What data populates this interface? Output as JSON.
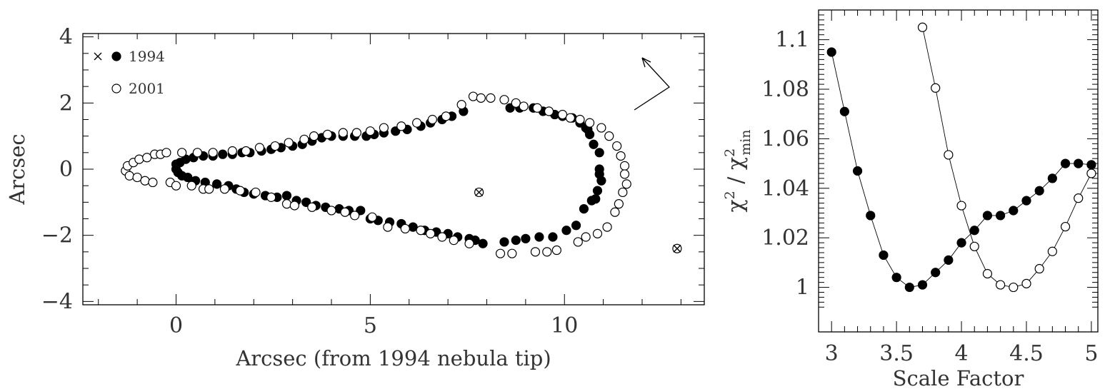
{
  "chart_data": [
    {
      "type": "scatter",
      "xlabel": "Arcsec (from 1994 nebula tip)",
      "ylabel": "Arcsec",
      "xlim": [
        -2.4,
        13.6
      ],
      "ylim": [
        -4.1,
        4.1
      ],
      "xticks": [
        0,
        5,
        10
      ],
      "yticks": [
        -4,
        -2,
        0,
        2,
        4
      ],
      "xtick_labels": [
        "0",
        "5",
        "10"
      ],
      "ytick_labels": [
        "−4",
        "−2",
        "0",
        "2",
        "4"
      ],
      "legend": {
        "position": "top-left",
        "entries": [
          {
            "symbol": "cross-and-filled",
            "label": "1994"
          },
          {
            "symbol": "open",
            "label": "2001"
          }
        ]
      },
      "markers": [
        {
          "type": "cross-circle",
          "x": 7.8,
          "y": -0.7
        },
        {
          "type": "cross-circle",
          "x": 12.9,
          "y": -2.4
        }
      ],
      "series": [
        {
          "marker": "filled",
          "points": [
            [
              0.0,
              0.0
            ],
            [
              0.0,
              0.15
            ],
            [
              0.05,
              -0.1
            ],
            [
              0.1,
              0.2
            ],
            [
              0.15,
              -0.2
            ],
            [
              0.25,
              0.3
            ],
            [
              0.3,
              -0.25
            ],
            [
              0.45,
              0.35
            ],
            [
              0.5,
              -0.35
            ],
            [
              0.7,
              0.4
            ],
            [
              0.75,
              -0.4
            ],
            [
              0.95,
              0.4
            ],
            [
              1.05,
              -0.45
            ],
            [
              1.2,
              0.45
            ],
            [
              1.35,
              -0.5
            ],
            [
              1.45,
              0.45
            ],
            [
              1.55,
              -0.6
            ],
            [
              1.7,
              0.5
            ],
            [
              1.75,
              -0.7
            ],
            [
              1.9,
              0.5
            ],
            [
              2.0,
              -0.75
            ],
            [
              2.2,
              0.55
            ],
            [
              2.3,
              -0.8
            ],
            [
              2.45,
              0.6
            ],
            [
              2.6,
              -0.85
            ],
            [
              2.7,
              0.65
            ],
            [
              2.85,
              -0.8
            ],
            [
              3.0,
              0.7
            ],
            [
              3.1,
              -0.95
            ],
            [
              3.25,
              0.75
            ],
            [
              3.35,
              -1.0
            ],
            [
              3.5,
              0.85
            ],
            [
              3.6,
              -1.1
            ],
            [
              3.75,
              0.95
            ],
            [
              3.85,
              -1.15
            ],
            [
              4.0,
              1.0
            ],
            [
              4.2,
              -1.2
            ],
            [
              4.3,
              1.0
            ],
            [
              4.45,
              -1.25
            ],
            [
              4.6,
              1.0
            ],
            [
              4.75,
              -1.25
            ],
            [
              4.9,
              1.0
            ],
            [
              5.0,
              -1.5
            ],
            [
              5.1,
              1.05
            ],
            [
              5.2,
              -1.55
            ],
            [
              5.35,
              1.1
            ],
            [
              5.5,
              -1.6
            ],
            [
              5.65,
              1.15
            ],
            [
              5.8,
              -1.65
            ],
            [
              5.95,
              1.2
            ],
            [
              6.1,
              -1.75
            ],
            [
              6.3,
              1.3
            ],
            [
              6.4,
              -1.85
            ],
            [
              6.55,
              1.4
            ],
            [
              6.7,
              -1.9
            ],
            [
              6.85,
              1.5
            ],
            [
              7.0,
              -1.95
            ],
            [
              7.1,
              1.6
            ],
            [
              7.25,
              -2.05
            ],
            [
              7.4,
              1.75
            ],
            [
              7.55,
              -2.1
            ],
            [
              7.7,
              -2.15
            ],
            [
              7.9,
              -2.25
            ],
            [
              8.45,
              -2.2
            ],
            [
              8.6,
              1.85
            ],
            [
              8.75,
              -2.15
            ],
            [
              8.85,
              1.85
            ],
            [
              9.0,
              -2.1
            ],
            [
              9.2,
              1.85
            ],
            [
              9.35,
              -2.05
            ],
            [
              9.45,
              1.75
            ],
            [
              9.7,
              -2.05
            ],
            [
              9.75,
              1.65
            ],
            [
              9.95,
              1.6
            ],
            [
              10.05,
              -1.85
            ],
            [
              10.2,
              1.55
            ],
            [
              10.3,
              -1.7
            ],
            [
              10.4,
              1.4
            ],
            [
              10.5,
              -1.2
            ],
            [
              10.55,
              1.25
            ],
            [
              10.6,
              1.2
            ],
            [
              10.65,
              1.05
            ],
            [
              10.7,
              -0.95
            ],
            [
              10.75,
              0.75
            ],
            [
              10.8,
              -0.9
            ],
            [
              10.85,
              -0.65
            ],
            [
              10.9,
              0.5
            ],
            [
              10.95,
              -0.35
            ],
            [
              10.9,
              0.0
            ],
            [
              10.9,
              -0.15
            ]
          ]
        },
        {
          "marker": "open",
          "points": [
            [
              -1.3,
              -0.05
            ],
            [
              -1.25,
              0.1
            ],
            [
              -1.2,
              -0.2
            ],
            [
              -1.1,
              0.2
            ],
            [
              -1.0,
              -0.25
            ],
            [
              -0.95,
              0.3
            ],
            [
              -0.8,
              -0.35
            ],
            [
              -0.75,
              0.35
            ],
            [
              -0.6,
              -0.4
            ],
            [
              -0.55,
              0.45
            ],
            [
              -0.4,
              0.45
            ],
            [
              -0.25,
              0.5
            ],
            [
              -0.15,
              -0.4
            ],
            [
              0.0,
              -0.5
            ],
            [
              0.15,
              0.5
            ],
            [
              0.4,
              -0.5
            ],
            [
              0.55,
              0.5
            ],
            [
              0.7,
              -0.6
            ],
            [
              0.85,
              -0.6
            ],
            [
              0.95,
              0.5
            ],
            [
              1.25,
              -0.6
            ],
            [
              1.45,
              0.55
            ],
            [
              1.65,
              -0.65
            ],
            [
              1.8,
              0.55
            ],
            [
              2.05,
              -0.7
            ],
            [
              2.15,
              0.65
            ],
            [
              2.45,
              -0.85
            ],
            [
              2.55,
              0.7
            ],
            [
              2.85,
              -1.05
            ],
            [
              2.9,
              0.8
            ],
            [
              3.05,
              -1.1
            ],
            [
              3.3,
              0.9
            ],
            [
              3.5,
              -1.15
            ],
            [
              3.55,
              1.0
            ],
            [
              3.9,
              1.05
            ],
            [
              4.0,
              -1.25
            ],
            [
              4.3,
              1.1
            ],
            [
              4.35,
              -1.3
            ],
            [
              4.6,
              -1.4
            ],
            [
              4.65,
              1.1
            ],
            [
              5.0,
              1.15
            ],
            [
              5.05,
              -1.45
            ],
            [
              5.35,
              1.25
            ],
            [
              5.45,
              -1.75
            ],
            [
              5.8,
              1.3
            ],
            [
              5.9,
              -1.8
            ],
            [
              6.2,
              1.4
            ],
            [
              6.3,
              -1.85
            ],
            [
              6.55,
              -1.95
            ],
            [
              6.6,
              1.5
            ],
            [
              6.85,
              -2.05
            ],
            [
              6.95,
              1.6
            ],
            [
              7.15,
              -2.15
            ],
            [
              7.35,
              1.95
            ],
            [
              7.55,
              -2.25
            ],
            [
              7.65,
              2.2
            ],
            [
              7.85,
              2.15
            ],
            [
              8.1,
              2.15
            ],
            [
              8.35,
              -2.55
            ],
            [
              8.45,
              2.1
            ],
            [
              8.65,
              -2.55
            ],
            [
              8.75,
              2.0
            ],
            [
              8.95,
              1.9
            ],
            [
              9.25,
              -2.5
            ],
            [
              9.3,
              1.85
            ],
            [
              9.55,
              -2.5
            ],
            [
              9.6,
              1.75
            ],
            [
              9.8,
              -2.45
            ],
            [
              9.95,
              1.65
            ],
            [
              10.15,
              1.55
            ],
            [
              10.35,
              -2.2
            ],
            [
              10.4,
              1.5
            ],
            [
              10.55,
              -2.05
            ],
            [
              10.65,
              1.4
            ],
            [
              10.85,
              -1.95
            ],
            [
              10.95,
              1.25
            ],
            [
              11.1,
              -1.75
            ],
            [
              11.15,
              1.0
            ],
            [
              11.3,
              -1.3
            ],
            [
              11.35,
              0.7
            ],
            [
              11.4,
              -1.05
            ],
            [
              11.45,
              0.4
            ],
            [
              11.5,
              -0.7
            ],
            [
              11.55,
              0.1
            ],
            [
              11.6,
              -0.45
            ],
            [
              11.55,
              -0.15
            ]
          ]
        }
      ]
    },
    {
      "type": "line",
      "xlabel": "Scale Factor",
      "ylabel": "χ² / χ²min",
      "ylabel_parts": {
        "numerator": "χ",
        "sup": "2",
        "slash": "/",
        "denominator": "χ",
        "sup2": "2",
        "sub2": "min"
      },
      "xlim": [
        2.9,
        5.05
      ],
      "ylim": [
        0.982,
        1.112
      ],
      "xticks": [
        3,
        3.5,
        4,
        4.5,
        5
      ],
      "yticks": [
        1,
        1.02,
        1.04,
        1.06,
        1.08,
        1.1
      ],
      "xtick_labels": [
        "3",
        "3.5",
        "4",
        "4.5",
        "5"
      ],
      "ytick_labels": [
        "1",
        "1.02",
        "1.04",
        "1.06",
        "1.08",
        "1.1"
      ],
      "series": [
        {
          "marker": "filled",
          "x": [
            3.0,
            3.1,
            3.2,
            3.3,
            3.4,
            3.5,
            3.6,
            3.7,
            3.8,
            3.9,
            4.0,
            4.1,
            4.2,
            4.3,
            4.4,
            4.5,
            4.6,
            4.7,
            4.8,
            4.9,
            5.0
          ],
          "y": [
            1.095,
            1.071,
            1.047,
            1.029,
            1.013,
            1.004,
            1.0,
            1.001,
            1.006,
            1.011,
            1.018,
            1.023,
            1.029,
            1.029,
            1.031,
            1.035,
            1.039,
            1.044,
            1.05,
            1.05,
            1.0495
          ]
        },
        {
          "marker": "open",
          "x": [
            3.7,
            3.8,
            3.9,
            4.0,
            4.1,
            4.2,
            4.3,
            4.4,
            4.5,
            4.6,
            4.7,
            4.8,
            4.9,
            5.0
          ],
          "y": [
            1.105,
            1.0805,
            1.0535,
            1.033,
            1.0165,
            1.0055,
            1.001,
            1.0,
            1.0015,
            1.0075,
            1.0145,
            1.0245,
            1.036,
            1.046
          ]
        }
      ]
    }
  ]
}
